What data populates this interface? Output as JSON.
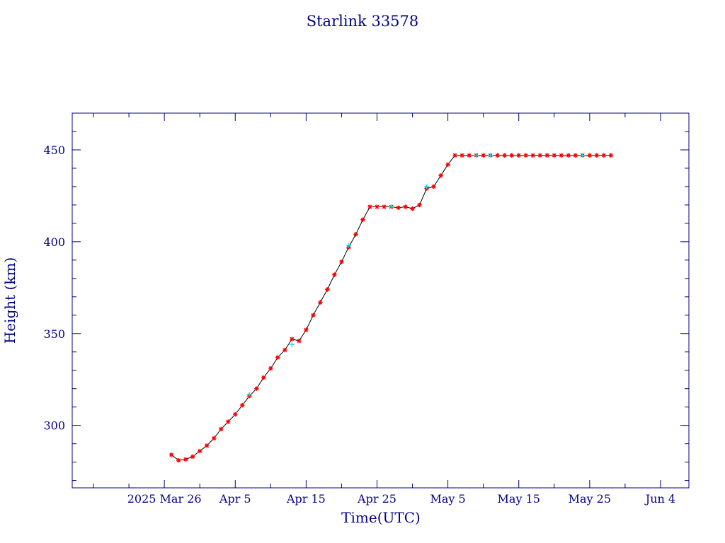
{
  "chart_data": {
    "type": "scatter",
    "title": "Starlink 33578",
    "xlabel": "Time(UTC)",
    "ylabel": "Height (km)",
    "x_axis": {
      "unit": "date",
      "range": [
        "2025-03-13",
        "2025-06-08"
      ],
      "major_ticks": [
        {
          "date": "2025-03-26",
          "label": "2025 Mar 26"
        },
        {
          "date": "2025-04-05",
          "label": "Apr  5"
        },
        {
          "date": "2025-04-15",
          "label": "Apr 15"
        },
        {
          "date": "2025-04-25",
          "label": "Apr 25"
        },
        {
          "date": "2025-05-05",
          "label": "May  5"
        },
        {
          "date": "2025-05-15",
          "label": "May 15"
        },
        {
          "date": "2025-05-25",
          "label": "May 25"
        },
        {
          "date": "2025-06-04",
          "label": "Jun  4"
        }
      ],
      "minor_tick_interval_days": 5
    },
    "y_axis": {
      "range": [
        266,
        470
      ],
      "major_ticks": [
        300,
        350,
        400,
        450
      ],
      "minor_tick_interval": 10
    },
    "grid": false,
    "colors": {
      "frame": "#00008b",
      "text": "#00008b",
      "line": "#000000",
      "marker_primary": "#ff0000",
      "marker_secondary": "#00e5ee"
    },
    "series": [
      {
        "marker": "star",
        "color": "#ff0000",
        "connected": true,
        "points": [
          [
            "2025-03-27",
            284
          ],
          [
            "2025-03-28",
            281
          ],
          [
            "2025-03-29",
            281.5
          ],
          [
            "2025-03-30",
            283
          ],
          [
            "2025-03-31",
            286
          ],
          [
            "2025-04-01",
            289
          ],
          [
            "2025-04-02",
            293
          ],
          [
            "2025-04-03",
            298
          ],
          [
            "2025-04-04",
            302
          ],
          [
            "2025-04-05",
            306
          ],
          [
            "2025-04-06",
            311
          ],
          [
            "2025-04-07",
            316
          ],
          [
            "2025-04-08",
            320
          ],
          [
            "2025-04-09",
            326
          ],
          [
            "2025-04-10",
            331
          ],
          [
            "2025-04-11",
            337
          ],
          [
            "2025-04-12",
            341
          ],
          [
            "2025-04-13",
            347
          ],
          [
            "2025-04-14",
            346
          ],
          [
            "2025-04-15",
            352
          ],
          [
            "2025-04-16",
            360
          ],
          [
            "2025-04-17",
            367
          ],
          [
            "2025-04-18",
            374
          ],
          [
            "2025-04-19",
            382
          ],
          [
            "2025-04-20",
            389
          ],
          [
            "2025-04-21",
            397
          ],
          [
            "2025-04-22",
            404
          ],
          [
            "2025-04-23",
            412
          ],
          [
            "2025-04-24",
            419
          ],
          [
            "2025-04-25",
            419
          ],
          [
            "2025-04-26",
            419
          ],
          [
            "2025-04-27",
            419
          ],
          [
            "2025-04-28",
            418.5
          ],
          [
            "2025-04-29",
            419
          ],
          [
            "2025-04-30",
            418
          ],
          [
            "2025-05-01",
            420
          ],
          [
            "2025-05-02",
            429
          ],
          [
            "2025-05-03",
            430
          ],
          [
            "2025-05-04",
            436
          ],
          [
            "2025-05-05",
            442
          ],
          [
            "2025-05-06",
            447
          ],
          [
            "2025-05-07",
            447
          ],
          [
            "2025-05-08",
            447
          ],
          [
            "2025-05-09",
            447
          ],
          [
            "2025-05-10",
            447
          ],
          [
            "2025-05-11",
            447
          ],
          [
            "2025-05-12",
            447
          ],
          [
            "2025-05-13",
            447
          ],
          [
            "2025-05-14",
            447
          ],
          [
            "2025-05-15",
            447
          ],
          [
            "2025-05-16",
            447
          ],
          [
            "2025-05-17",
            447
          ],
          [
            "2025-05-18",
            447
          ],
          [
            "2025-05-19",
            447
          ],
          [
            "2025-05-20",
            447
          ],
          [
            "2025-05-21",
            447
          ],
          [
            "2025-05-22",
            447
          ],
          [
            "2025-05-23",
            447
          ],
          [
            "2025-05-24",
            447
          ],
          [
            "2025-05-25",
            447
          ],
          [
            "2025-05-26",
            447
          ],
          [
            "2025-05-27",
            447
          ],
          [
            "2025-05-28",
            447
          ]
        ]
      },
      {
        "marker": "cross",
        "color": "#00e5ee",
        "connected": false,
        "points": [
          [
            "2025-04-07",
            317
          ],
          [
            "2025-04-13",
            344
          ],
          [
            "2025-04-21",
            398
          ],
          [
            "2025-04-27",
            419
          ],
          [
            "2025-05-02",
            430
          ],
          [
            "2025-05-09",
            447
          ],
          [
            "2025-05-11",
            447
          ],
          [
            "2025-05-24",
            447
          ]
        ]
      }
    ]
  }
}
